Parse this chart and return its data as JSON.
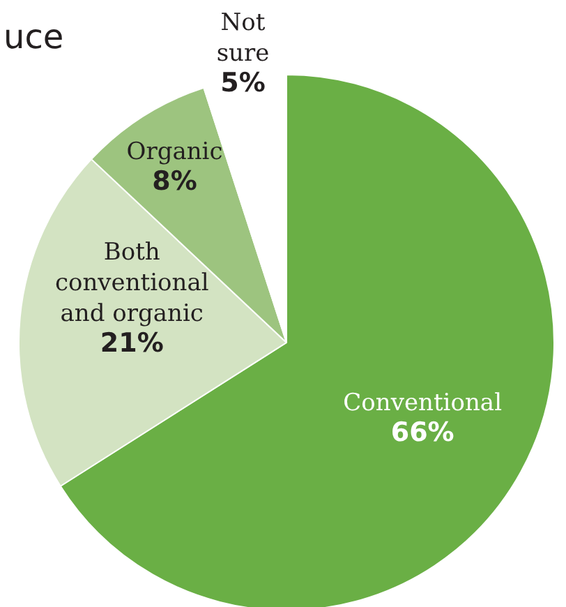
{
  "chart_data": {
    "type": "pie",
    "title": "uce",
    "categories": [
      "Conventional",
      "Both conventional and organic",
      "Organic",
      "Not sure"
    ],
    "values": [
      66,
      21,
      8,
      5
    ],
    "colors": [
      "#6aaf45",
      "#d3e3c2",
      "#9dc47f",
      "#ffffff"
    ],
    "value_labels": [
      "66%",
      "21%",
      "8%",
      "5%"
    ]
  }
}
